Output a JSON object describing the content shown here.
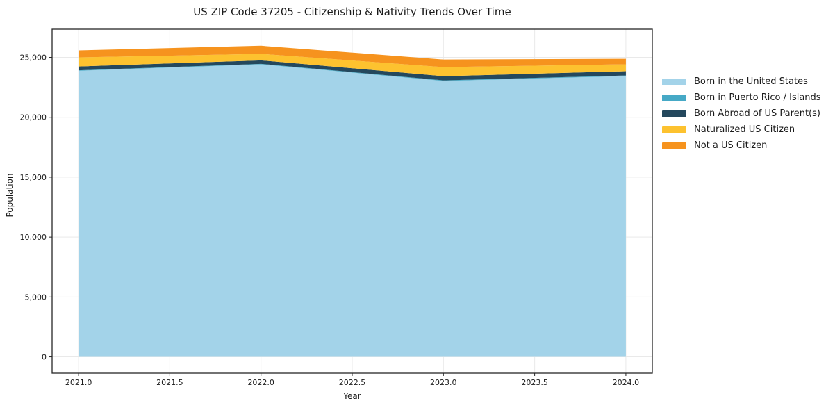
{
  "chart_data": {
    "type": "area",
    "stacked": true,
    "title": "US ZIP Code 37205 - Citizenship & Nativity Trends Over Time",
    "xlabel": "Year",
    "ylabel": "Population",
    "x": [
      2021,
      2022,
      2023,
      2024
    ],
    "series": [
      {
        "name": "Born in the United States",
        "color": "#A3D3E9",
        "values": [
          23880,
          24420,
          23030,
          23440
        ]
      },
      {
        "name": "Born in Puerto Rico / Islands",
        "color": "#46A9C6",
        "values": [
          40,
          40,
          50,
          50
        ]
      },
      {
        "name": "Born Abroad of US Parent(s)",
        "color": "#24485D",
        "values": [
          320,
          290,
          350,
          350
        ]
      },
      {
        "name": "Naturalized US Citizen",
        "color": "#FDC22F",
        "values": [
          760,
          540,
          760,
          580
        ]
      },
      {
        "name": "Not a US Citizen",
        "color": "#F6931E",
        "values": [
          580,
          680,
          630,
          460
        ]
      }
    ],
    "totals": [
      25580,
      25970,
      24820,
      24880
    ],
    "xlim": [
      2020.855,
      2024.145
    ],
    "ylim": [
      -1360,
      27350
    ],
    "xticks": {
      "values": [
        2021.0,
        2021.5,
        2022.0,
        2022.5,
        2023.0,
        2023.5,
        2024.0
      ],
      "labels": [
        "2021.0",
        "2021.5",
        "2022.0",
        "2022.5",
        "2023.0",
        "2023.5",
        "2024.0"
      ]
    },
    "yticks": {
      "values": [
        0,
        5000,
        10000,
        15000,
        20000,
        25000
      ],
      "labels": [
        "0",
        "5,000",
        "10,000",
        "15,000",
        "20,000",
        "25,000"
      ]
    },
    "grid": true,
    "legend_position": "right-outside",
    "colors": {
      "background": "#ffffff",
      "frame": "#262626",
      "grid": "#e9e9e9",
      "text": "#1a1a1a"
    }
  }
}
